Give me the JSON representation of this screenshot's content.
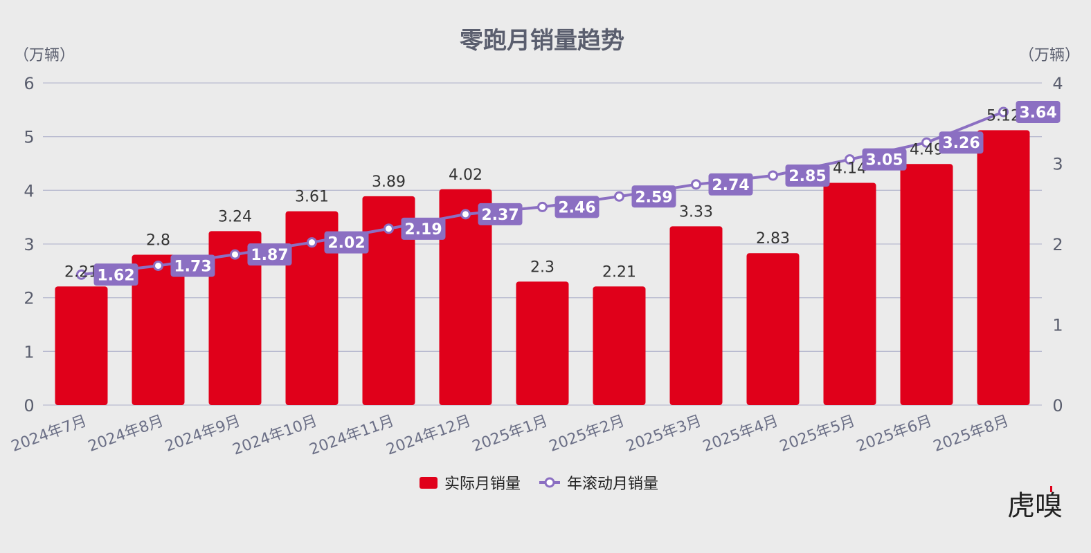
{
  "chart_data": {
    "type": "bar",
    "title": "零跑月销量趋势",
    "left_unit": "（万辆）",
    "right_unit": "（万辆）",
    "categories": [
      "2024年7月",
      "2024年8月",
      "2024年9月",
      "2024年10月",
      "2024年11月",
      "2024年12月",
      "2025年1月",
      "2025年2月",
      "2025年3月",
      "2025年4月",
      "2025年5月",
      "2025年6月",
      "2025年8月"
    ],
    "series": [
      {
        "name": "实际月销量",
        "type": "bar",
        "axis": "left",
        "color": "#e0001a",
        "values": [
          2.21,
          2.8,
          3.24,
          3.61,
          3.89,
          4.02,
          2.3,
          2.21,
          3.33,
          2.83,
          4.14,
          4.49,
          5.12
        ],
        "labels": [
          "2.21",
          "2.8",
          "3.24",
          "3.61",
          "3.89",
          "4.02",
          "2.3",
          "2.21",
          "3.33",
          "2.83",
          "4.14",
          "4.49",
          "5.12"
        ]
      },
      {
        "name": "年滚动月销量",
        "type": "line",
        "axis": "right",
        "color": "#8b6fc2",
        "values": [
          1.62,
          1.73,
          1.87,
          2.02,
          2.19,
          2.37,
          2.46,
          2.59,
          2.74,
          2.85,
          3.05,
          3.26,
          3.64
        ],
        "labels": [
          "1.62",
          "1.73",
          "1.87",
          "2.02",
          "2.19",
          "2.37",
          "2.46",
          "2.59",
          "2.74",
          "2.85",
          "3.05",
          "3.26",
          "3.64"
        ]
      }
    ],
    "ylim_left": [
      0,
      6
    ],
    "yticks_left": [
      "0",
      "1",
      "2",
      "3",
      "4",
      "5",
      "6"
    ],
    "ylim_right": [
      0,
      4
    ],
    "yticks_right": [
      "0",
      "1",
      "2",
      "3",
      "4"
    ],
    "grid": true,
    "legend": "bottom-center"
  },
  "watermark": "虎嗅"
}
